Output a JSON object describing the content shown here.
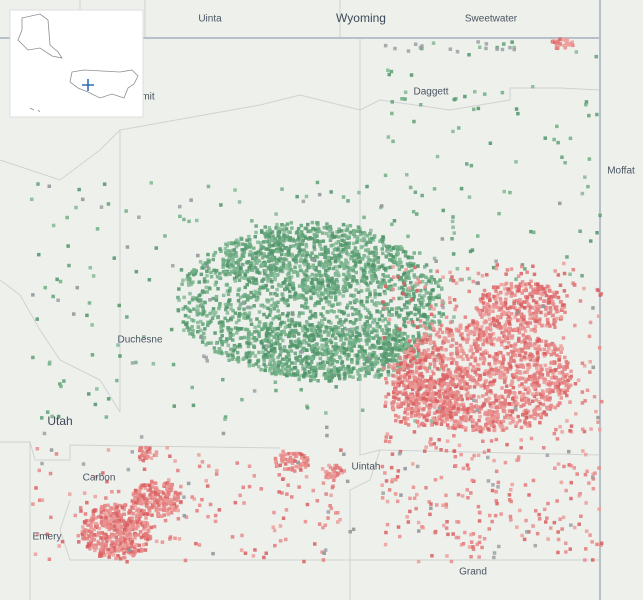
{
  "map": {
    "labels": [
      "Uinta",
      "Wyoming",
      "Sweetwater",
      "mit",
      "Daggett",
      "Moffat",
      "Duchesne",
      "Utah",
      "Uintah",
      "Carbon",
      "Emery",
      "Grand"
    ]
  }
}
